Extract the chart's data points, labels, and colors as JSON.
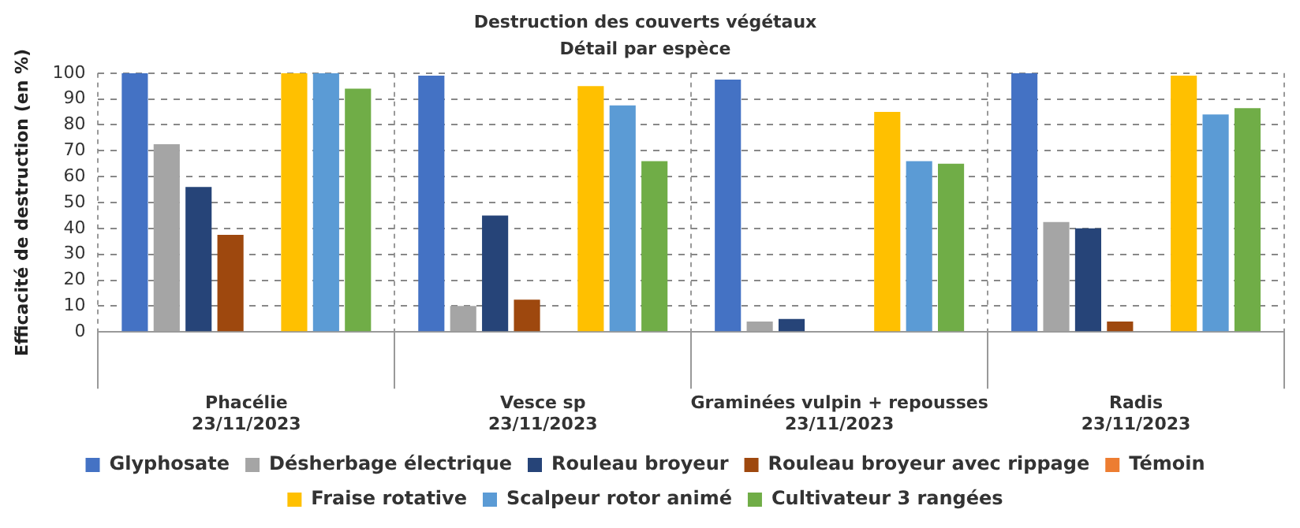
{
  "chart_data": {
    "type": "bar",
    "title": "Destruction des couverts végétaux",
    "subtitle": "Détail par espèce",
    "ylabel": "Efficacité de destruction (en %)",
    "categories": [
      "Phacélie\n23/11/2023",
      "Vesce sp\n23/11/2023",
      "Graminées vulpin + repousses\n23/11/2023",
      "Radis\n23/11/2023"
    ],
    "series": [
      {
        "name": "Glyphosate",
        "color": "#4472c4",
        "values": [
          100,
          99,
          97.5,
          100
        ]
      },
      {
        "name": "Désherbage électrique",
        "color": "#a5a5a5",
        "values": [
          72.5,
          10,
          4,
          42.5
        ]
      },
      {
        "name": "Rouleau broyeur",
        "color": "#264478",
        "values": [
          56,
          45,
          5,
          40
        ]
      },
      {
        "name": "Rouleau broyeur avec rippage",
        "color": "#9e480e",
        "values": [
          37.5,
          12.5,
          0,
          4
        ]
      },
      {
        "name": "Témoin",
        "color": "#ed7d31",
        "values": [
          0,
          0,
          0,
          0
        ]
      },
      {
        "name": "Fraise rotative",
        "color": "#ffc000",
        "values": [
          100,
          95,
          85,
          99
        ]
      },
      {
        "name": "Scalpeur rotor animé",
        "color": "#5b9bd5",
        "values": [
          100,
          87.5,
          66,
          84
        ]
      },
      {
        "name": "Cultivateur 3 rangées",
        "color": "#70ad47",
        "values": [
          94,
          66,
          65,
          86.5
        ]
      }
    ],
    "ylim": [
      0,
      100
    ],
    "yticks": [
      0,
      10,
      20,
      30,
      40,
      50,
      60,
      70,
      80,
      90,
      100
    ],
    "grid": true,
    "legend": "bottom"
  }
}
